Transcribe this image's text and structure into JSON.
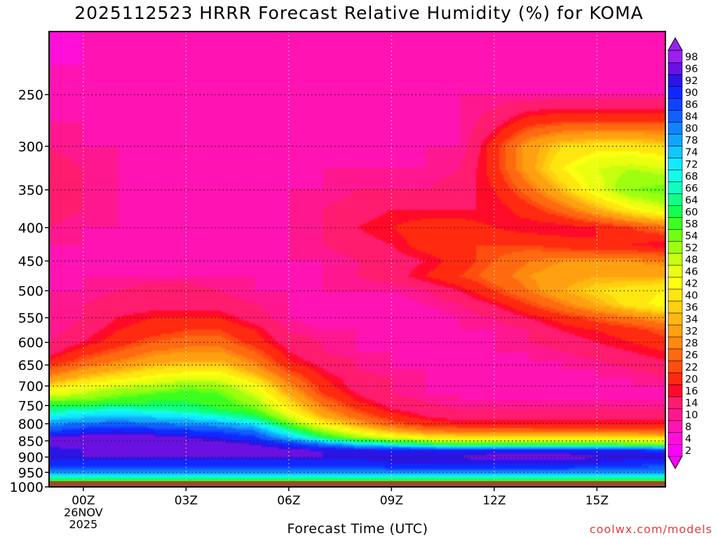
{
  "header": {
    "title": "2025112523 HRRR Forecast Relative Humidity (%) for KOMA"
  },
  "footer": {
    "xaxis_title": "Forecast Time (UTC)",
    "credit": "coolwx.com/models"
  },
  "chart_data": {
    "type": "heatmap",
    "title": "2025112523 HRRR Forecast Relative Humidity (%) for KOMA",
    "xlabel": "Forecast Time (UTC)",
    "ylabel": "",
    "x_ticks": [
      {
        "t": 1,
        "label": "00Z",
        "sub1": "26NOV",
        "sub2": "2025"
      },
      {
        "t": 4,
        "label": "03Z"
      },
      {
        "t": 7,
        "label": "06Z"
      },
      {
        "t": 10,
        "label": "09Z"
      },
      {
        "t": 13,
        "label": "12Z"
      },
      {
        "t": 16,
        "label": "15Z"
      }
    ],
    "xlim": [
      0,
      18
    ],
    "y_ticks": [
      250,
      300,
      350,
      400,
      450,
      500,
      550,
      600,
      650,
      700,
      750,
      800,
      850,
      900,
      950,
      1000
    ],
    "ylim": [
      1000,
      200
    ],
    "y_scale": "log-pressure",
    "grid": true,
    "ground_level_hpa": 980,
    "ground_color": "#9c4a2a",
    "x": [
      0,
      1,
      2,
      3,
      4,
      5,
      6,
      7,
      8,
      9,
      10,
      11,
      12,
      13,
      14,
      15,
      16,
      17,
      18
    ],
    "y": [
      980,
      960,
      940,
      920,
      900,
      880,
      860,
      840,
      820,
      800,
      780,
      760,
      740,
      720,
      700,
      680,
      660,
      640,
      620,
      600,
      575,
      550,
      525,
      500,
      475,
      450,
      425,
      400,
      375,
      350,
      325,
      300,
      275,
      250,
      225,
      200
    ],
    "values": [
      [
        56,
        56,
        56,
        56,
        56,
        56,
        56,
        56,
        56,
        56,
        56,
        56,
        56,
        56,
        56,
        56,
        56,
        56,
        56
      ],
      [
        70,
        70,
        70,
        70,
        70,
        70,
        70,
        70,
        70,
        70,
        70,
        70,
        70,
        70,
        70,
        70,
        70,
        70,
        70
      ],
      [
        82,
        82,
        82,
        82,
        82,
        82,
        82,
        82,
        82,
        82,
        84,
        84,
        84,
        84,
        84,
        84,
        82,
        82,
        82
      ],
      [
        88,
        88,
        88,
        88,
        88,
        88,
        88,
        88,
        88,
        88,
        90,
        90,
        90,
        90,
        90,
        90,
        90,
        88,
        86
      ],
      [
        92,
        92,
        92,
        92,
        92,
        92,
        92,
        92,
        92,
        92,
        92,
        92,
        92,
        94,
        94,
        94,
        92,
        92,
        92
      ],
      [
        90,
        92,
        94,
        94,
        94,
        94,
        94,
        94,
        92,
        92,
        92,
        92,
        90,
        90,
        90,
        90,
        90,
        90,
        88
      ],
      [
        94,
        94,
        95,
        95,
        94,
        94,
        92,
        88,
        80,
        72,
        66,
        60,
        56,
        56,
        56,
        56,
        56,
        54,
        52
      ],
      [
        92,
        94,
        94,
        94,
        92,
        90,
        86,
        74,
        60,
        50,
        44,
        40,
        38,
        38,
        38,
        38,
        38,
        38,
        36
      ],
      [
        84,
        88,
        90,
        88,
        86,
        84,
        80,
        64,
        50,
        40,
        32,
        26,
        24,
        24,
        24,
        22,
        22,
        22,
        22
      ],
      [
        78,
        80,
        82,
        80,
        78,
        76,
        70,
        54,
        40,
        30,
        22,
        18,
        16,
        16,
        16,
        16,
        16,
        16,
        16
      ],
      [
        68,
        72,
        74,
        72,
        70,
        66,
        60,
        46,
        32,
        24,
        18,
        14,
        12,
        12,
        12,
        12,
        12,
        12,
        12
      ],
      [
        62,
        64,
        66,
        64,
        62,
        58,
        54,
        40,
        28,
        20,
        14,
        12,
        10,
        10,
        10,
        10,
        10,
        10,
        10
      ],
      [
        54,
        54,
        56,
        58,
        58,
        56,
        50,
        36,
        24,
        16,
        12,
        10,
        8,
        8,
        8,
        8,
        8,
        8,
        8
      ],
      [
        44,
        48,
        52,
        54,
        56,
        54,
        46,
        32,
        20,
        14,
        10,
        8,
        8,
        8,
        8,
        8,
        8,
        8,
        8
      ],
      [
        36,
        42,
        46,
        48,
        52,
        50,
        42,
        28,
        18,
        12,
        10,
        8,
        8,
        8,
        8,
        8,
        8,
        8,
        8
      ],
      [
        28,
        34,
        38,
        42,
        44,
        44,
        36,
        24,
        16,
        12,
        10,
        8,
        8,
        8,
        8,
        8,
        8,
        8,
        10
      ],
      [
        22,
        28,
        32,
        36,
        38,
        38,
        30,
        20,
        14,
        10,
        8,
        8,
        8,
        8,
        8,
        8,
        8,
        10,
        12
      ],
      [
        16,
        22,
        26,
        30,
        32,
        32,
        26,
        16,
        12,
        10,
        8,
        8,
        8,
        8,
        8,
        8,
        10,
        12,
        14
      ],
      [
        12,
        18,
        22,
        26,
        28,
        28,
        22,
        14,
        10,
        8,
        8,
        8,
        8,
        8,
        8,
        10,
        12,
        14,
        16
      ],
      [
        10,
        14,
        18,
        22,
        24,
        24,
        18,
        12,
        10,
        8,
        8,
        8,
        8,
        8,
        10,
        12,
        14,
        16,
        18
      ],
      [
        8,
        12,
        16,
        18,
        20,
        20,
        16,
        10,
        8,
        8,
        8,
        8,
        8,
        8,
        10,
        14,
        16,
        18,
        22
      ],
      [
        8,
        10,
        14,
        16,
        16,
        16,
        12,
        8,
        6,
        6,
        6,
        6,
        8,
        10,
        14,
        18,
        22,
        26,
        30
      ],
      [
        8,
        10,
        12,
        12,
        12,
        12,
        10,
        8,
        6,
        6,
        6,
        8,
        10,
        14,
        20,
        26,
        32,
        38,
        42
      ],
      [
        8,
        8,
        10,
        12,
        12,
        10,
        8,
        8,
        8,
        8,
        8,
        10,
        14,
        20,
        26,
        32,
        36,
        38,
        40
      ],
      [
        8,
        8,
        8,
        8,
        8,
        8,
        8,
        8,
        8,
        10,
        12,
        16,
        20,
        24,
        28,
        30,
        32,
        32,
        32
      ],
      [
        8,
        8,
        8,
        8,
        8,
        8,
        8,
        8,
        8,
        10,
        12,
        14,
        18,
        22,
        26,
        28,
        28,
        28,
        26
      ],
      [
        8,
        8,
        8,
        8,
        8,
        8,
        8,
        8,
        10,
        12,
        14,
        18,
        20,
        20,
        20,
        18,
        16,
        16,
        14
      ],
      [
        10,
        8,
        8,
        8,
        8,
        8,
        8,
        8,
        10,
        14,
        16,
        18,
        18,
        16,
        14,
        14,
        16,
        20,
        24
      ],
      [
        12,
        10,
        8,
        8,
        8,
        8,
        8,
        8,
        10,
        12,
        14,
        14,
        14,
        14,
        18,
        24,
        32,
        40,
        46
      ],
      [
        14,
        10,
        8,
        8,
        8,
        8,
        8,
        8,
        8,
        10,
        10,
        10,
        12,
        16,
        24,
        34,
        44,
        52,
        54
      ],
      [
        12,
        10,
        8,
        8,
        6,
        6,
        6,
        8,
        8,
        8,
        8,
        8,
        10,
        18,
        30,
        40,
        46,
        48,
        46
      ],
      [
        10,
        8,
        8,
        6,
        6,
        6,
        8,
        8,
        8,
        8,
        8,
        8,
        8,
        18,
        30,
        36,
        38,
        38,
        36
      ],
      [
        8,
        8,
        8,
        8,
        8,
        8,
        8,
        8,
        8,
        8,
        8,
        8,
        8,
        12,
        18,
        20,
        20,
        20,
        20
      ],
      [
        6,
        6,
        8,
        8,
        8,
        8,
        8,
        8,
        8,
        8,
        8,
        8,
        8,
        8,
        8,
        8,
        8,
        8,
        8
      ],
      [
        4,
        4,
        6,
        8,
        8,
        8,
        8,
        8,
        8,
        8,
        8,
        8,
        8,
        8,
        8,
        8,
        8,
        8,
        8
      ],
      [
        4,
        4,
        6,
        8,
        8,
        8,
        8,
        8,
        8,
        8,
        8,
        8,
        8,
        8,
        8,
        8,
        8,
        8,
        8
      ]
    ],
    "colorbar": {
      "levels": [
        2,
        4,
        8,
        10,
        14,
        16,
        20,
        22,
        26,
        28,
        32,
        34,
        36,
        40,
        42,
        46,
        48,
        52,
        54,
        58,
        60,
        64,
        66,
        68,
        72,
        74,
        78,
        80,
        84,
        86,
        90,
        92,
        96,
        98
      ],
      "colors": [
        "#ff00ff",
        "#ff0fd8",
        "#ff13b2",
        "#ff1790",
        "#ff1b6e",
        "#ff0a28",
        "#ff2a10",
        "#ff4d10",
        "#ff6a10",
        "#ff8810",
        "#ffa010",
        "#ffb810",
        "#ffd010",
        "#ffe610",
        "#ffff10",
        "#eaff10",
        "#c8ff10",
        "#9eff10",
        "#72ff10",
        "#3cff20",
        "#10ff50",
        "#10ff86",
        "#10ffbe",
        "#10ffe6",
        "#10eaff",
        "#10c8ff",
        "#10a6ff",
        "#1084ff",
        "#1060ff",
        "#1042ff",
        "#1028ff",
        "#2a14e6",
        "#6a10e0",
        "#9a20f0"
      ]
    }
  }
}
